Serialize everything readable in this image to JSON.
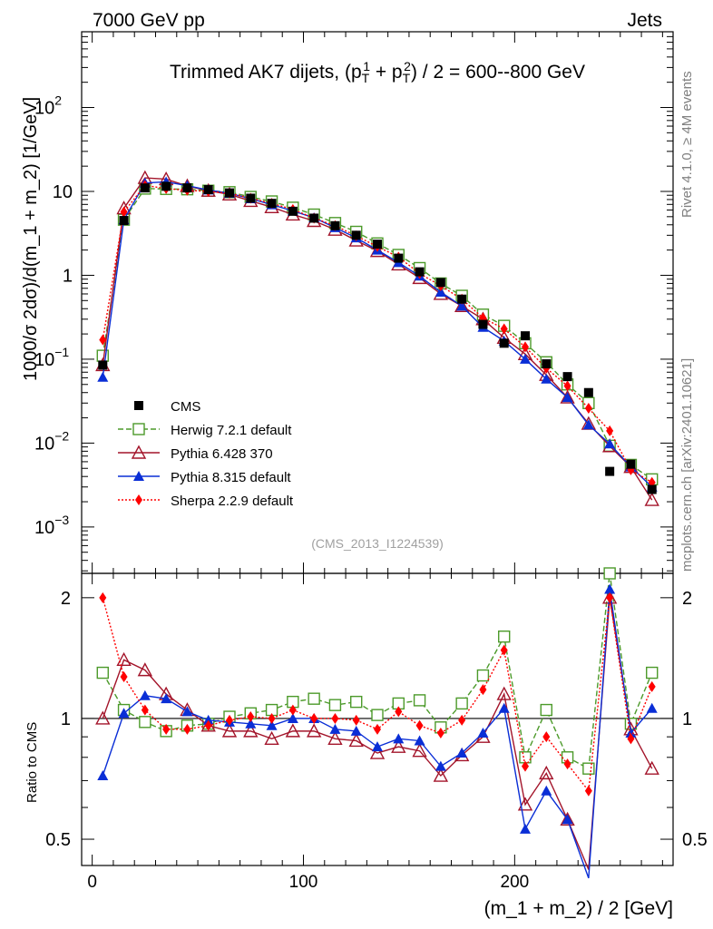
{
  "header": {
    "left": "7000 GeV pp",
    "right": "Jets",
    "side_top": "Rivet 4.1.0, ≥ 4M events",
    "side_bottom": "mcplots.cern.ch [arXiv:2401.10621]"
  },
  "chart_data": [
    {
      "type": "line",
      "yscale": "log",
      "title": "Trimmed AK7 dijets, (p_T^1 + p_T^2) / 2 = 600--800 GeV",
      "title_parts": {
        "pre": "Trimmed AK7 dijets, (p",
        "sub": "T",
        "sup1": "1",
        "mid": " + p",
        "sup2": "2",
        "post": ") / 2 = 600--800 GeV"
      },
      "ylabel": "1000/σ   2dσ)/d(m_1 + m_2) [1/GeV]",
      "ylim": [
        0.00028,
        800
      ],
      "xlim": [
        -5,
        275
      ],
      "y_ticks": [
        {
          "value": 0.001,
          "base": "10",
          "exp": "−3"
        },
        {
          "value": 0.01,
          "base": "10",
          "exp": "−2"
        },
        {
          "value": 0.1,
          "base": "10",
          "exp": "−1"
        },
        {
          "value": 1,
          "base": "1",
          "exp": ""
        },
        {
          "value": 10,
          "base": "10",
          "exp": ""
        },
        {
          "value": 100,
          "base": "10",
          "exp": "2"
        }
      ],
      "annotation": "(CMS_2013_I1224539)",
      "x": [
        5,
        15,
        25,
        35,
        45,
        55,
        65,
        75,
        85,
        95,
        105,
        115,
        125,
        135,
        145,
        155,
        165,
        175,
        185,
        195,
        205,
        215,
        225,
        235,
        245,
        255,
        265
      ],
      "series": [
        {
          "name": "CMS",
          "style": "data",
          "color": "#000000",
          "values": [
            0.085,
            4.5,
            11.0,
            11.5,
            11.0,
            10.5,
            9.6,
            8.3,
            7.2,
            5.8,
            4.8,
            3.9,
            3.0,
            2.35,
            1.6,
            1.1,
            0.82,
            0.52,
            0.26,
            0.155,
            0.19,
            0.088,
            0.062,
            0.04,
            0.0046,
            0.0056,
            0.0028
          ]
        },
        {
          "name": "Herwig 7.2.1 default",
          "style": "dashed",
          "color": "#4c9a2a",
          "marker": "open-square",
          "values": [
            0.11,
            4.6,
            10.8,
            10.7,
            10.6,
            10.2,
            9.8,
            8.6,
            7.6,
            6.4,
            5.3,
            4.2,
            3.3,
            2.4,
            1.75,
            1.22,
            0.8,
            0.57,
            0.34,
            0.25,
            0.155,
            0.092,
            0.05,
            0.03,
            0.0093,
            0.0055,
            0.0037
          ]
        },
        {
          "name": "Pythia 6.428 370",
          "style": "solid",
          "color": "#a3142a",
          "marker": "open-triangle",
          "values": [
            0.085,
            6.3,
            14.5,
            14.0,
            11.6,
            10.2,
            9.2,
            7.7,
            6.5,
            5.3,
            4.45,
            3.5,
            2.6,
            1.95,
            1.35,
            0.93,
            0.6,
            0.43,
            0.3,
            0.18,
            0.115,
            0.065,
            0.035,
            0.017,
            0.0092,
            0.0052,
            0.0021
          ]
        },
        {
          "name": "Pythia 8.315 default",
          "style": "solid",
          "color": "#0a2ed6",
          "marker": "filled-triangle",
          "values": [
            0.061,
            4.6,
            12.6,
            13.0,
            11.7,
            10.4,
            9.5,
            8.2,
            6.95,
            5.85,
            4.85,
            3.7,
            2.8,
            2.0,
            1.42,
            0.98,
            0.63,
            0.43,
            0.24,
            0.165,
            0.1,
            0.058,
            0.035,
            0.0165,
            0.0098,
            0.0052,
            0.003
          ]
        },
        {
          "name": "Sherpa 2.2.9 default",
          "style": "dotted",
          "color": "#ff0000",
          "marker": "filled-diamond",
          "values": [
            0.17,
            5.7,
            11.8,
            10.8,
            10.3,
            10.0,
            9.5,
            8.3,
            7.2,
            6.1,
            4.8,
            3.9,
            2.95,
            2.2,
            1.65,
            1.05,
            0.75,
            0.52,
            0.31,
            0.23,
            0.14,
            0.078,
            0.048,
            0.026,
            0.014,
            0.0048,
            0.0034
          ]
        }
      ],
      "legend": {
        "position": "bottom-left"
      }
    },
    {
      "type": "line",
      "yscale": "log",
      "ylabel": "Ratio to CMS",
      "xlabel": "(m_1 + m_2) / 2 [GeV]",
      "ylim": [
        0.43,
        2.3
      ],
      "xlim": [
        -5,
        275
      ],
      "x_ticks": [
        0,
        100,
        200
      ],
      "y_ticks": [
        0.5,
        1,
        2
      ],
      "x": [
        5,
        15,
        25,
        35,
        45,
        55,
        65,
        75,
        85,
        95,
        105,
        115,
        125,
        135,
        145,
        155,
        165,
        175,
        185,
        195,
        205,
        215,
        225,
        235,
        245,
        255,
        265
      ],
      "series": [
        {
          "name": "Herwig 7.2.1 default",
          "color": "#4c9a2a",
          "values": [
            1.3,
            1.05,
            0.98,
            0.93,
            0.96,
            0.97,
            1.01,
            1.03,
            1.05,
            1.1,
            1.12,
            1.08,
            1.1,
            1.02,
            1.09,
            1.11,
            0.95,
            1.09,
            1.28,
            1.6,
            0.8,
            1.05,
            0.8,
            0.75,
            2.3,
            0.97,
            1.3
          ]
        },
        {
          "name": "Pythia 6.428 370",
          "color": "#a3142a",
          "values": [
            1.0,
            1.4,
            1.32,
            1.15,
            1.05,
            0.96,
            0.93,
            0.93,
            0.89,
            0.93,
            0.93,
            0.89,
            0.88,
            0.82,
            0.85,
            0.83,
            0.72,
            0.81,
            0.9,
            1.15,
            0.61,
            0.73,
            0.56,
            0.42,
            2.0,
            0.94,
            0.75
          ]
        },
        {
          "name": "Pythia 8.315 default",
          "color": "#0a2ed6",
          "values": [
            0.72,
            1.03,
            1.14,
            1.12,
            1.04,
            0.99,
            0.98,
            0.97,
            0.96,
            1.0,
            1.0,
            0.94,
            0.93,
            0.85,
            0.89,
            0.88,
            0.76,
            0.82,
            0.92,
            1.06,
            0.53,
            0.66,
            0.56,
            0.4,
            2.1,
            0.92,
            1.06
          ]
        },
        {
          "name": "Sherpa 2.2.9 default",
          "color": "#ff0000",
          "values": [
            2.0,
            1.27,
            1.05,
            0.94,
            0.94,
            0.96,
            0.99,
            1.01,
            1.0,
            1.05,
            1.0,
            1.0,
            0.99,
            0.94,
            1.04,
            0.96,
            0.92,
            0.99,
            1.18,
            1.48,
            0.76,
            0.9,
            0.77,
            0.66,
            2.0,
            0.89,
            1.2
          ]
        }
      ]
    }
  ]
}
